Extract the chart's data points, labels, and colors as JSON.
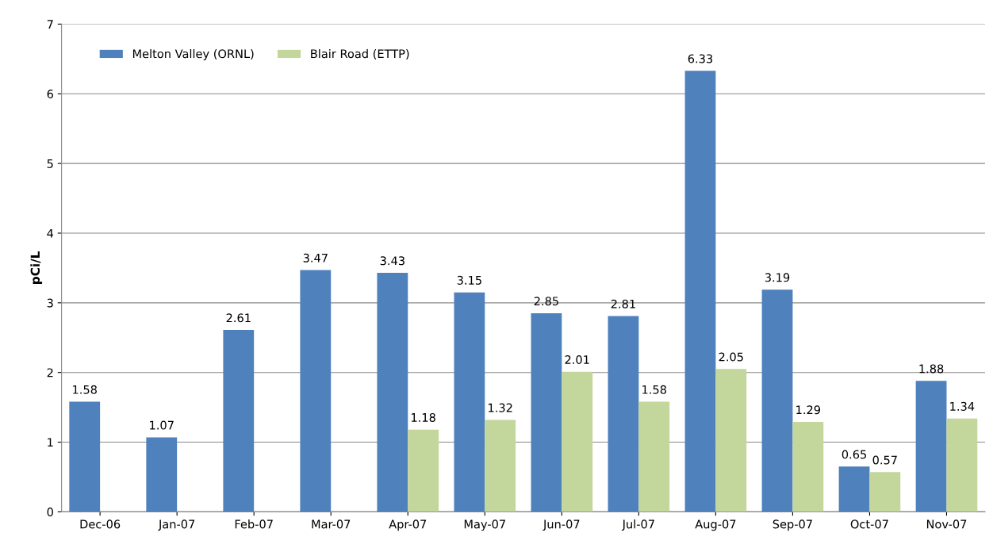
{
  "chart_data": {
    "type": "bar",
    "ylabel": "pCi/L",
    "categories": [
      "Dec-06",
      "Jan-07",
      "Feb-07",
      "Mar-07",
      "Apr-07",
      "May-07",
      "Jun-07",
      "Jul-07",
      "Aug-07",
      "Sep-07",
      "Oct-07",
      "Nov-07"
    ],
    "series": [
      {
        "name": "Melton Valley (ORNL)",
        "color": "#4f81bd",
        "values": [
          1.58,
          1.07,
          2.61,
          3.47,
          3.43,
          3.15,
          2.85,
          2.81,
          6.33,
          3.19,
          0.65,
          1.88
        ]
      },
      {
        "name": "Blair Road (ETTP)",
        "color": "#c3d69b",
        "values": [
          null,
          null,
          null,
          null,
          1.18,
          1.32,
          2.01,
          1.58,
          2.05,
          1.29,
          0.57,
          1.34
        ]
      }
    ],
    "ylim": [
      0,
      7
    ],
    "yticks": [
      0,
      1,
      2,
      3,
      4,
      5,
      6,
      7
    ],
    "grid": "y",
    "legend": "top left",
    "data_labels": true
  }
}
